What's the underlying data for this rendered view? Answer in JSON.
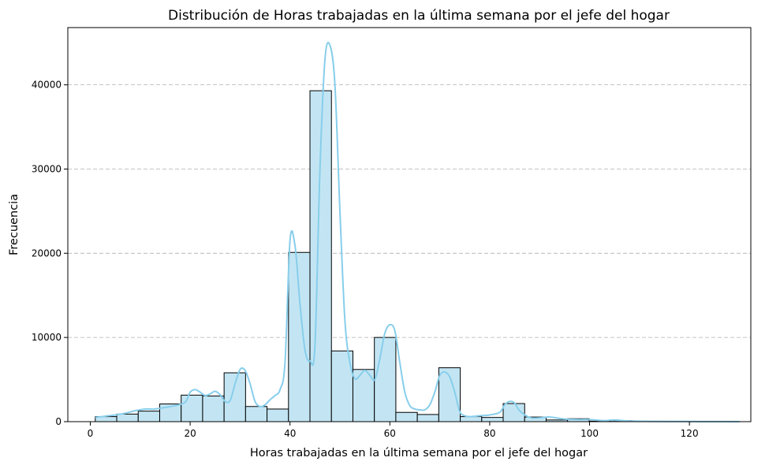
{
  "chart_data": {
    "type": "bar",
    "title": "Distribución de Horas trabajadas en la última semana por el jefe del hogar",
    "xlabel": "Horas trabajadas en la última semana por el jefe del hogar",
    "ylabel": "Frecuencia",
    "xlim": [
      -4.5,
      132.3
    ],
    "ylim": [
      0,
      46800
    ],
    "xticks": [
      0,
      20,
      40,
      60,
      80,
      100,
      120
    ],
    "yticks": [
      0,
      10000,
      20000,
      30000,
      40000
    ],
    "grid": "y-dashed",
    "bar_color": "#c3e5f3",
    "kde_color": "#87ceeb",
    "bins": [
      {
        "x0": 1.0,
        "x1": 5.3,
        "value": 600
      },
      {
        "x0": 5.3,
        "x1": 9.6,
        "value": 900
      },
      {
        "x0": 9.6,
        "x1": 13.9,
        "value": 1250
      },
      {
        "x0": 13.9,
        "x1": 18.2,
        "value": 2100
      },
      {
        "x0": 18.2,
        "x1": 22.5,
        "value": 3150
      },
      {
        "x0": 22.5,
        "x1": 26.8,
        "value": 3050
      },
      {
        "x0": 26.8,
        "x1": 31.1,
        "value": 5800
      },
      {
        "x0": 31.1,
        "x1": 35.4,
        "value": 1800
      },
      {
        "x0": 35.4,
        "x1": 39.7,
        "value": 1500
      },
      {
        "x0": 39.7,
        "x1": 44.0,
        "value": 20100
      },
      {
        "x0": 44.0,
        "x1": 48.3,
        "value": 39300
      },
      {
        "x0": 48.3,
        "x1": 52.6,
        "value": 8400
      },
      {
        "x0": 52.6,
        "x1": 56.9,
        "value": 6200
      },
      {
        "x0": 56.9,
        "x1": 61.2,
        "value": 10000
      },
      {
        "x0": 61.2,
        "x1": 65.5,
        "value": 1100
      },
      {
        "x0": 65.5,
        "x1": 69.8,
        "value": 850
      },
      {
        "x0": 69.8,
        "x1": 74.1,
        "value": 6400
      },
      {
        "x0": 74.1,
        "x1": 78.4,
        "value": 600
      },
      {
        "x0": 78.4,
        "x1": 82.7,
        "value": 500
      },
      {
        "x0": 82.7,
        "x1": 87.0,
        "value": 2150
      },
      {
        "x0": 87.0,
        "x1": 91.3,
        "value": 550
      },
      {
        "x0": 91.3,
        "x1": 95.6,
        "value": 200
      },
      {
        "x0": 95.6,
        "x1": 99.9,
        "value": 350
      },
      {
        "x0": 99.9,
        "x1": 104.2,
        "value": 60
      },
      {
        "x0": 104.2,
        "x1": 108.5,
        "value": 120
      },
      {
        "x0": 108.5,
        "x1": 112.8,
        "value": 40
      },
      {
        "x0": 112.8,
        "x1": 117.1,
        "value": 30
      },
      {
        "x0": 117.1,
        "x1": 121.4,
        "value": 20
      },
      {
        "x0": 121.4,
        "x1": 125.7,
        "value": 20
      },
      {
        "x0": 125.7,
        "x1": 130.0,
        "value": 20
      }
    ],
    "kde": {
      "x": [
        1,
        3,
        5,
        7,
        9,
        11,
        13,
        15,
        17,
        19,
        20,
        21,
        22,
        23,
        24,
        25,
        26,
        27,
        28,
        29,
        30,
        31,
        32,
        33,
        34,
        35,
        36,
        37,
        38,
        39,
        40,
        41,
        42,
        43,
        44,
        45,
        46,
        47,
        48,
        49,
        50,
        51,
        52,
        53,
        54,
        55,
        56,
        57,
        58,
        59,
        60,
        61,
        62,
        63,
        64,
        65,
        66,
        67,
        68,
        69,
        70,
        71,
        72,
        73,
        74,
        75,
        76,
        78,
        80,
        82,
        83,
        84,
        85,
        86,
        88,
        90,
        92,
        95,
        98,
        100,
        103,
        105,
        108,
        112,
        118,
        124,
        130
      ],
      "y": [
        500,
        650,
        800,
        1000,
        1300,
        1500,
        1500,
        1700,
        1900,
        2300,
        3500,
        3800,
        3500,
        3100,
        3300,
        3600,
        3200,
        2400,
        2500,
        4500,
        6200,
        6100,
        4500,
        2400,
        1800,
        2000,
        2600,
        3100,
        3800,
        7000,
        21500,
        20900,
        14000,
        8500,
        7200,
        9000,
        30000,
        43000,
        44700,
        40000,
        25000,
        12000,
        7000,
        5100,
        5500,
        6100,
        5500,
        5000,
        7500,
        10500,
        11500,
        10800,
        7000,
        3500,
        1900,
        1500,
        1400,
        1400,
        2000,
        3500,
        5500,
        5900,
        5300,
        3500,
        1200,
        700,
        600,
        700,
        800,
        1100,
        2000,
        2400,
        2200,
        1300,
        500,
        450,
        550,
        300,
        250,
        250,
        120,
        200,
        80,
        40,
        20,
        10,
        0
      ]
    }
  }
}
